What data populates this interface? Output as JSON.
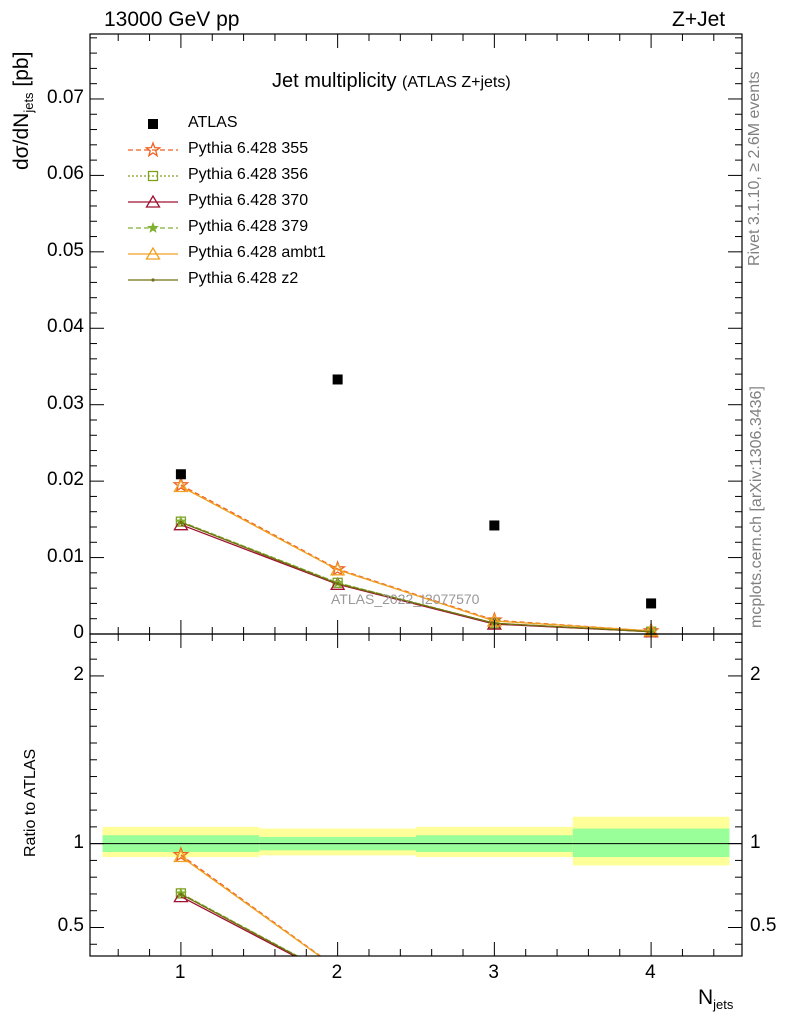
{
  "header": {
    "energy_label": "13000 GeV pp",
    "process_label": "Z+Jet"
  },
  "side_labels": {
    "rivet": "Rivet 3.1.10, ≥ 2.6M events",
    "mcplots": "mcplots.cern.ch [arXiv:1306.3436]"
  },
  "plot_title": {
    "main": "Jet multiplicity",
    "sub": "(ATLAS Z+jets)"
  },
  "analysis_ref": "ATLAS_2022_I2077570",
  "axes": {
    "y_main_label_prefix": "dσ/dN",
    "y_main_label_sub": "jets",
    "y_main_label_suffix": " [pb]",
    "y_ratio_label": "Ratio to ATLAS",
    "x_label_prefix": "N",
    "x_label_sub": "jets"
  },
  "ticks": {
    "main_y": [
      "0.07",
      "0.06",
      "0.05",
      "0.04",
      "0.03",
      "0.02",
      "0.01",
      "0"
    ],
    "ratio_y": [
      "2",
      "1",
      "0.5"
    ],
    "x": [
      "1",
      "2",
      "3",
      "4"
    ]
  },
  "colors": {
    "data": "#000000",
    "py355": "#f06020",
    "py356": "#80a020",
    "py370": "#a01030",
    "py379": "#80b030",
    "ambt1": "#f0a020",
    "z2": "#707010",
    "band_inner": "#99ff99",
    "band_outer": "#ffff99"
  },
  "chart_data": {
    "type": "line",
    "xlabel": "N_jets",
    "ylabel": "dσ/dN_jets [pb]",
    "x": [
      1,
      2,
      3,
      4
    ],
    "xlim": [
      0.42,
      4.58
    ],
    "ylim": [
      0,
      0.0785
    ],
    "ratio_ylim": [
      0.33,
      2.25
    ],
    "legend_position": "top-left",
    "series": [
      {
        "name": "ATLAS",
        "marker": "square",
        "values": [
          0.0209,
          0.0333,
          0.0142,
          0.004
        ]
      },
      {
        "name": "Pythia 6.428 355",
        "marker": "star",
        "dash": "5,3",
        "values": [
          0.0195,
          0.0085,
          0.0018,
          0.0004
        ]
      },
      {
        "name": "Pythia 6.428 356",
        "marker": "open-square",
        "dash": "2,2",
        "values": [
          0.0147,
          0.0067,
          0.0014,
          0.0003
        ]
      },
      {
        "name": "Pythia 6.428 370",
        "marker": "open-triangle",
        "values": [
          0.0143,
          0.0065,
          0.0013,
          0.0003
        ]
      },
      {
        "name": "Pythia 6.428 379",
        "marker": "small-star",
        "dash": "5,3",
        "values": [
          0.0147,
          0.0067,
          0.0014,
          0.0003
        ]
      },
      {
        "name": "Pythia 6.428 ambt1",
        "marker": "open-triangle",
        "values": [
          0.0193,
          0.0084,
          0.0017,
          0.0004
        ]
      },
      {
        "name": "Pythia 6.428 z2",
        "marker": "dot",
        "values": [
          0.0146,
          0.0066,
          0.0014,
          0.0003
        ]
      }
    ],
    "ratio_band": {
      "x_low": [
        0.5,
        1.5,
        2.5,
        3.5
      ],
      "x_high": [
        1.5,
        2.5,
        3.5,
        4.5
      ],
      "inner": [
        [
          0.95,
          1.05
        ],
        [
          0.96,
          1.04
        ],
        [
          0.95,
          1.05
        ],
        [
          0.92,
          1.09
        ]
      ],
      "outer": [
        [
          0.92,
          1.1
        ],
        [
          0.93,
          1.09
        ],
        [
          0.92,
          1.1
        ],
        [
          0.87,
          1.16
        ]
      ]
    }
  }
}
